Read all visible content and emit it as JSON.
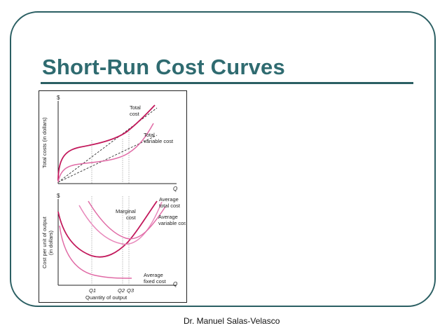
{
  "slide": {
    "title": "Short-Run Cost Curves",
    "credit": "Dr. Manuel Salas-Velasco"
  },
  "top_graph": {
    "y_symbol": "$",
    "y_label": "Total costs (in dollars)",
    "x_symbol": "Q",
    "curve_labels": {
      "total_cost_1": "Total",
      "total_cost_2": "cost",
      "tvc_1": "Total",
      "tvc_2": "variable cost"
    }
  },
  "bottom_graph": {
    "y_symbol": "$",
    "y_label_1": "Cost per unit of output",
    "y_label_2": "(in dollars)",
    "x_symbol": "Q",
    "x_label": "Quantity of output",
    "curve_labels": {
      "atc_1": "Average",
      "atc_2": "total cost",
      "mc_1": "Marginal",
      "mc_2": "cost",
      "avc_1": "Average",
      "avc_2": "variable cost",
      "afc_1": "Average",
      "afc_2": "fixed cost"
    },
    "x_ticks": {
      "q1": "Q1",
      "q2": "Q2",
      "q3": "Q3"
    }
  },
  "colors": {
    "total_cost": "#c2185b",
    "variable_cost": "#e06aa5",
    "marginal_cost": "#c2185b",
    "average_total_cost": "#e888bb",
    "average_variable_cost": "#e06aa5",
    "average_fixed_cost": "#e06aa5",
    "frame": "#2b5f63",
    "title": "#2f6b70"
  }
}
